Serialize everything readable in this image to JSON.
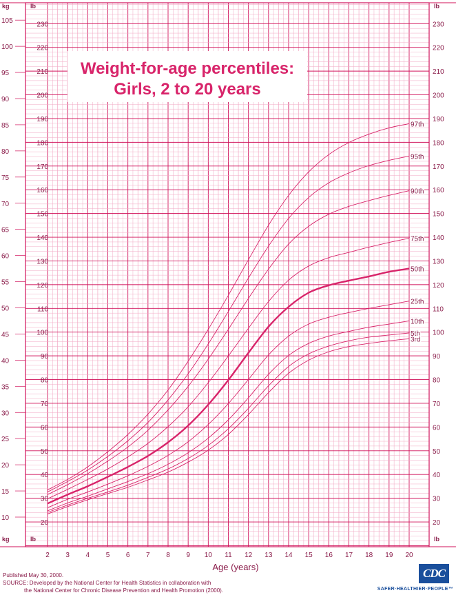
{
  "page": {
    "footer_published": "Published May 30, 2000.",
    "footer_source_prefix": "SOURCE:",
    "footer_source_1": "Developed by the National Center for Health Statistics in collaboration with",
    "footer_source_2": "the National Center for Chronic Disease Prevention and Health Promotion (2000).",
    "logo_text": "CDC",
    "logo_slogan": "SAFER·HEALTHIER·PEOPLE™"
  },
  "colors": {
    "grid_major": "#d0105a",
    "grid_minor": "#f2a9c4",
    "curve": "#d8246a",
    "text": "#8a1c4a",
    "title": "#d8246a",
    "logo": "#1a4f9c"
  },
  "chart_data": {
    "type": "line",
    "title_line1": "Weight-for-age percentiles:",
    "title_line2": "Girls, 2 to 20 years",
    "xlabel": "Age (years)",
    "unit_left": "kg",
    "unit_right": "lb",
    "xlim": [
      2,
      20
    ],
    "ylim_kg": [
      5,
      107
    ],
    "x_ticks": [
      2,
      3,
      4,
      5,
      6,
      7,
      8,
      9,
      10,
      11,
      12,
      13,
      14,
      15,
      16,
      17,
      18,
      19,
      20
    ],
    "kg_ticks": [
      10,
      15,
      20,
      25,
      30,
      35,
      40,
      45,
      50,
      55,
      60,
      65,
      70,
      75,
      80,
      85,
      90,
      95,
      100,
      105
    ],
    "lb_ticks": [
      20,
      30,
      40,
      50,
      60,
      70,
      80,
      90,
      100,
      110,
      120,
      130,
      140,
      150,
      160,
      170,
      180,
      190,
      200,
      210,
      220,
      230
    ],
    "x": [
      2,
      3,
      4,
      5,
      6,
      7,
      8,
      9,
      10,
      11,
      12,
      13,
      14,
      15,
      16,
      17,
      18,
      19,
      20
    ],
    "series": [
      {
        "name": "97th",
        "values": [
          15.2,
          17.2,
          19.6,
          22.5,
          25.8,
          29.7,
          34.3,
          39.8,
          45.9,
          52.4,
          59.2,
          65.8,
          71.5,
          76.0,
          79.3,
          81.6,
          83.2,
          84.4,
          85.2
        ]
      },
      {
        "name": "95th",
        "values": [
          14.8,
          16.8,
          19.0,
          21.6,
          24.6,
          28.1,
          32.4,
          37.4,
          43.1,
          49.3,
          55.7,
          61.8,
          67.1,
          71.1,
          73.9,
          75.8,
          77.2,
          78.2,
          79.0
        ]
      },
      {
        "name": "90th",
        "values": [
          14.3,
          16.2,
          18.3,
          20.7,
          23.4,
          26.6,
          30.5,
          35.0,
          40.2,
          45.9,
          51.8,
          57.4,
          62.2,
          65.6,
          67.9,
          69.4,
          70.5,
          71.5,
          72.4
        ]
      },
      {
        "name": "75th",
        "values": [
          13.5,
          15.3,
          17.2,
          19.2,
          21.5,
          24.1,
          27.3,
          31.1,
          35.7,
          40.8,
          46.1,
          51.2,
          55.3,
          58.0,
          59.6,
          60.6,
          61.6,
          62.5,
          63.3
        ]
      },
      {
        "name": "50th",
        "values": [
          12.6,
          14.3,
          15.9,
          17.7,
          19.6,
          21.7,
          24.3,
          27.5,
          31.5,
          36.2,
          41.4,
          46.4,
          50.2,
          52.9,
          54.3,
          55.2,
          56.0,
          56.9,
          57.5
        ]
      },
      {
        "name": "25th",
        "values": [
          11.8,
          13.4,
          14.8,
          16.3,
          17.9,
          19.7,
          21.8,
          24.4,
          27.7,
          31.7,
          36.3,
          41.0,
          44.6,
          46.9,
          48.2,
          49.1,
          49.9,
          50.6,
          51.3
        ]
      },
      {
        "name": "10th",
        "values": [
          11.2,
          12.7,
          14.0,
          15.4,
          16.8,
          18.3,
          20.1,
          22.3,
          25.1,
          28.6,
          32.8,
          37.3,
          40.9,
          43.2,
          44.6,
          45.5,
          46.3,
          46.9,
          47.5
        ]
      },
      {
        "name": "5th",
        "values": [
          10.9,
          12.3,
          13.6,
          14.8,
          16.1,
          17.6,
          19.2,
          21.2,
          23.7,
          26.9,
          30.8,
          35.1,
          38.8,
          41.2,
          42.7,
          43.7,
          44.4,
          44.8,
          45.2
        ]
      },
      {
        "name": "3rd",
        "values": [
          10.6,
          12.0,
          13.3,
          14.5,
          15.7,
          17.1,
          18.6,
          20.5,
          22.8,
          25.8,
          29.6,
          33.8,
          37.5,
          40.0,
          41.6,
          42.6,
          43.2,
          43.7,
          44.1
        ]
      }
    ],
    "highlight_series": "50th",
    "legend": "curve end labels"
  }
}
